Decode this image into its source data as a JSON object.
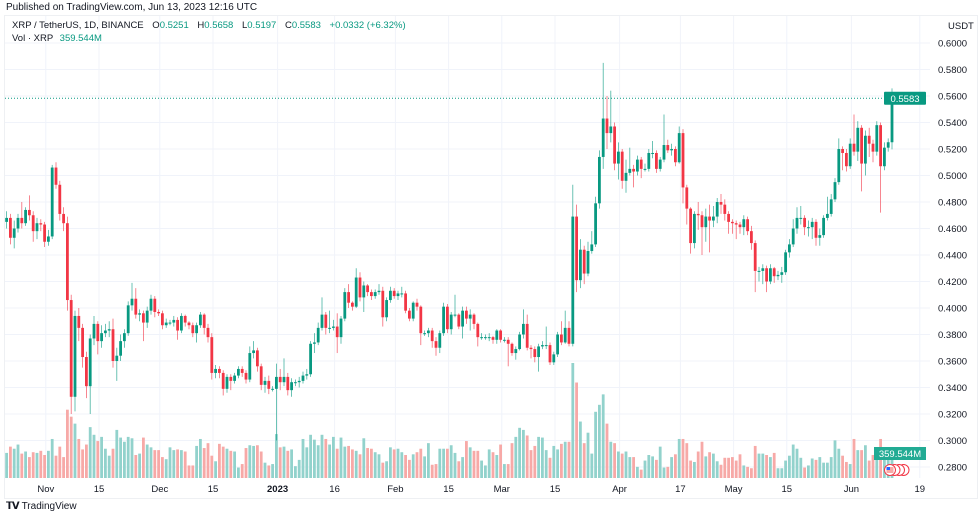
{
  "header": {
    "published": "Published on TradingView.com, Jun 13, 2023 12:16 UTC",
    "symbol": "XRP / TetherUS, 1D, BINANCE",
    "o_label": "O",
    "o": "0.5251",
    "h_label": "H",
    "h": "0.5658",
    "l_label": "L",
    "l": "0.5197",
    "c_label": "C",
    "c": "0.5583",
    "change": "+0.0332 (+6.32%)",
    "vol_label": "Vol · XRP",
    "vol": "359.544M"
  },
  "footer": {
    "brand": "TradingView",
    "logo_text": "TV"
  },
  "colors": {
    "up": "#089981",
    "down": "#f23645",
    "vol_up": "#92d2cc",
    "vol_down": "#f7a9a7",
    "grid": "#f0f3fa"
  },
  "event_icons": [
    "us-flag-icon",
    "event-icon",
    "event-icon",
    "event-icon"
  ],
  "chart_data": {
    "type": "candlestick",
    "title": "XRP / TetherUS, 1D, BINANCE",
    "ylabel": "USDT",
    "ylim": [
      0.27,
      0.61
    ],
    "yticks": [
      "0.6000",
      "0.5800",
      "0.5600",
      "0.5400",
      "0.5200",
      "0.5000",
      "0.4800",
      "0.4600",
      "0.4400",
      "0.4200",
      "0.4000",
      "0.3800",
      "0.3600",
      "0.3400",
      "0.3200",
      "0.3000",
      "0.2800"
    ],
    "last_bar_date": "2023-06-13",
    "last_price_label": "0.5583",
    "last_volume_label": "359.544M",
    "xticks": [
      {
        "label": "Nov",
        "date": "2022-11-01",
        "bold": false
      },
      {
        "label": "15",
        "date": "2022-11-15",
        "bold": false
      },
      {
        "label": "Dec",
        "date": "2022-12-01",
        "bold": false
      },
      {
        "label": "15",
        "date": "2022-12-15",
        "bold": false
      },
      {
        "label": "2023",
        "date": "2023-01-01",
        "bold": true
      },
      {
        "label": "16",
        "date": "2023-01-16",
        "bold": false
      },
      {
        "label": "Feb",
        "date": "2023-02-01",
        "bold": false
      },
      {
        "label": "15",
        "date": "2023-02-15",
        "bold": false
      },
      {
        "label": "Mar",
        "date": "2023-03-01",
        "bold": false
      },
      {
        "label": "15",
        "date": "2023-03-15",
        "bold": false
      },
      {
        "label": "Apr",
        "date": "2023-04-01",
        "bold": false
      },
      {
        "label": "17",
        "date": "2023-04-17",
        "bold": false
      },
      {
        "label": "May",
        "date": "2023-05-01",
        "bold": false
      },
      {
        "label": "15",
        "date": "2023-05-15",
        "bold": false
      },
      {
        "label": "Jun",
        "date": "2023-06-01",
        "bold": false
      },
      {
        "label": "19",
        "date": "2023-06-19",
        "bold": false
      }
    ],
    "first_open": 0.452,
    "close": [
      0.459,
      0.461,
      0.465,
      0.468,
      0.453,
      0.46,
      0.468,
      0.464,
      0.474,
      0.47,
      0.458,
      0.464,
      0.463,
      0.45,
      0.454,
      0.506,
      0.493,
      0.471,
      0.464,
      0.406,
      0.333,
      0.394,
      0.385,
      0.363,
      0.341,
      0.377,
      0.388,
      0.375,
      0.381,
      0.383,
      0.384,
      0.36,
      0.364,
      0.375,
      0.381,
      0.402,
      0.407,
      0.395,
      0.396,
      0.389,
      0.398,
      0.407,
      0.397,
      0.396,
      0.387,
      0.389,
      0.389,
      0.391,
      0.383,
      0.394,
      0.389,
      0.387,
      0.381,
      0.387,
      0.395,
      0.385,
      0.378,
      0.351,
      0.354,
      0.351,
      0.339,
      0.348,
      0.345,
      0.349,
      0.354,
      0.351,
      0.346,
      0.366,
      0.368,
      0.356,
      0.342,
      0.345,
      0.339,
      0.339,
      0.348,
      0.344,
      0.348,
      0.338,
      0.344,
      0.344,
      0.345,
      0.349,
      0.35,
      0.373,
      0.374,
      0.385,
      0.395,
      0.385,
      0.385,
      0.386,
      0.378,
      0.392,
      0.412,
      0.404,
      0.401,
      0.423,
      0.408,
      0.417,
      0.412,
      0.409,
      0.412,
      0.413,
      0.393,
      0.406,
      0.413,
      0.409,
      0.411,
      0.411,
      0.398,
      0.392,
      0.404,
      0.401,
      0.381,
      0.381,
      0.383,
      0.375,
      0.37,
      0.381,
      0.401,
      0.384,
      0.395,
      0.395,
      0.386,
      0.398,
      0.392,
      0.395,
      0.388,
      0.378,
      0.378,
      0.378,
      0.378,
      0.376,
      0.383,
      0.376,
      0.376,
      0.373,
      0.366,
      0.369,
      0.38,
      0.388,
      0.37,
      0.369,
      0.363,
      0.371,
      0.372,
      0.372,
      0.359,
      0.365,
      0.38,
      0.374,
      0.385,
      0.373,
      0.469,
      0.421,
      0.444,
      0.426,
      0.443,
      0.448,
      0.479,
      0.514,
      0.543,
      0.532,
      0.537,
      0.509,
      0.518,
      0.496,
      0.502,
      0.505,
      0.503,
      0.512,
      0.505,
      0.505,
      0.517,
      0.517,
      0.505,
      0.512,
      0.523,
      0.519,
      0.52,
      0.51,
      0.532,
      0.491,
      0.475,
      0.449,
      0.471,
      0.47,
      0.461,
      0.469,
      0.466,
      0.469,
      0.48,
      0.478,
      0.471,
      0.465,
      0.464,
      0.463,
      0.461,
      0.467,
      0.458,
      0.449,
      0.428,
      0.428,
      0.43,
      0.42,
      0.43,
      0.424,
      0.425,
      0.427,
      0.442,
      0.448,
      0.46,
      0.468,
      0.468,
      0.461,
      0.461,
      0.465,
      0.453,
      0.455,
      0.468,
      0.471,
      0.482,
      0.495,
      0.52,
      0.517,
      0.507,
      0.524,
      0.518,
      0.536,
      0.509,
      0.53,
      0.524,
      0.518,
      0.538,
      0.507,
      0.521,
      0.5251,
      0.5583
    ],
    "high": [
      0.466,
      0.468,
      0.47,
      0.473,
      0.471,
      0.466,
      0.471,
      0.48,
      0.476,
      0.485,
      0.473,
      0.468,
      0.467,
      0.465,
      0.459,
      0.508,
      0.51,
      0.496,
      0.476,
      0.469,
      0.41,
      0.398,
      0.4,
      0.388,
      0.367,
      0.38,
      0.394,
      0.39,
      0.387,
      0.388,
      0.39,
      0.392,
      0.37,
      0.38,
      0.384,
      0.405,
      0.419,
      0.415,
      0.399,
      0.398,
      0.401,
      0.41,
      0.409,
      0.399,
      0.398,
      0.392,
      0.391,
      0.394,
      0.393,
      0.396,
      0.395,
      0.39,
      0.389,
      0.389,
      0.397,
      0.396,
      0.388,
      0.381,
      0.357,
      0.356,
      0.353,
      0.35,
      0.35,
      0.351,
      0.356,
      0.356,
      0.353,
      0.371,
      0.375,
      0.37,
      0.358,
      0.348,
      0.349,
      0.341,
      0.358,
      0.354,
      0.362,
      0.351,
      0.347,
      0.346,
      0.348,
      0.352,
      0.354,
      0.375,
      0.381,
      0.389,
      0.408,
      0.397,
      0.398,
      0.391,
      0.396,
      0.394,
      0.415,
      0.418,
      0.405,
      0.43,
      0.427,
      0.42,
      0.418,
      0.414,
      0.414,
      0.418,
      0.416,
      0.408,
      0.416,
      0.415,
      0.413,
      0.416,
      0.413,
      0.4,
      0.405,
      0.407,
      0.402,
      0.383,
      0.385,
      0.385,
      0.378,
      0.383,
      0.404,
      0.403,
      0.397,
      0.41,
      0.396,
      0.401,
      0.401,
      0.399,
      0.396,
      0.389,
      0.381,
      0.38,
      0.381,
      0.379,
      0.384,
      0.384,
      0.378,
      0.378,
      0.374,
      0.371,
      0.382,
      0.399,
      0.395,
      0.372,
      0.371,
      0.373,
      0.375,
      0.386,
      0.374,
      0.367,
      0.382,
      0.39,
      0.398,
      0.39,
      0.493,
      0.478,
      0.452,
      0.447,
      0.45,
      0.458,
      0.484,
      0.519,
      0.585,
      0.56,
      0.564,
      0.54,
      0.525,
      0.52,
      0.512,
      0.521,
      0.508,
      0.515,
      0.514,
      0.509,
      0.52,
      0.526,
      0.519,
      0.514,
      0.546,
      0.527,
      0.524,
      0.522,
      0.537,
      0.535,
      0.493,
      0.476,
      0.473,
      0.48,
      0.473,
      0.475,
      0.478,
      0.477,
      0.483,
      0.486,
      0.482,
      0.473,
      0.467,
      0.466,
      0.465,
      0.47,
      0.469,
      0.462,
      0.451,
      0.431,
      0.433,
      0.432,
      0.433,
      0.431,
      0.428,
      0.431,
      0.444,
      0.452,
      0.467,
      0.476,
      0.477,
      0.47,
      0.466,
      0.468,
      0.467,
      0.46,
      0.47,
      0.484,
      0.486,
      0.498,
      0.528,
      0.522,
      0.52,
      0.528,
      0.546,
      0.541,
      0.538,
      0.534,
      0.536,
      0.527,
      0.541,
      0.54,
      0.525,
      0.528,
      0.5658
    ],
    "low": [
      0.445,
      0.452,
      0.455,
      0.46,
      0.448,
      0.445,
      0.457,
      0.46,
      0.462,
      0.466,
      0.45,
      0.452,
      0.458,
      0.446,
      0.447,
      0.452,
      0.49,
      0.466,
      0.458,
      0.398,
      0.32,
      0.322,
      0.375,
      0.355,
      0.332,
      0.32,
      0.372,
      0.365,
      0.37,
      0.378,
      0.378,
      0.355,
      0.345,
      0.36,
      0.37,
      0.379,
      0.398,
      0.392,
      0.39,
      0.375,
      0.385,
      0.395,
      0.393,
      0.394,
      0.384,
      0.385,
      0.387,
      0.386,
      0.376,
      0.381,
      0.386,
      0.384,
      0.378,
      0.374,
      0.385,
      0.38,
      0.374,
      0.346,
      0.347,
      0.347,
      0.334,
      0.336,
      0.338,
      0.343,
      0.347,
      0.348,
      0.343,
      0.344,
      0.362,
      0.352,
      0.338,
      0.336,
      0.335,
      0.337,
      0.3,
      0.338,
      0.341,
      0.334,
      0.333,
      0.341,
      0.34,
      0.343,
      0.346,
      0.348,
      0.366,
      0.372,
      0.383,
      0.38,
      0.381,
      0.383,
      0.366,
      0.373,
      0.39,
      0.4,
      0.398,
      0.4,
      0.405,
      0.397,
      0.409,
      0.406,
      0.407,
      0.41,
      0.386,
      0.39,
      0.404,
      0.407,
      0.406,
      0.408,
      0.396,
      0.39,
      0.39,
      0.398,
      0.372,
      0.379,
      0.378,
      0.37,
      0.364,
      0.366,
      0.379,
      0.381,
      0.38,
      0.393,
      0.384,
      0.377,
      0.388,
      0.383,
      0.384,
      0.371,
      0.376,
      0.376,
      0.375,
      0.373,
      0.373,
      0.374,
      0.374,
      0.356,
      0.364,
      0.361,
      0.368,
      0.377,
      0.368,
      0.362,
      0.359,
      0.352,
      0.369,
      0.369,
      0.357,
      0.357,
      0.363,
      0.372,
      0.373,
      0.371,
      0.371,
      0.412,
      0.415,
      0.418,
      0.424,
      0.441,
      0.446,
      0.475,
      0.505,
      0.52,
      0.525,
      0.504,
      0.497,
      0.49,
      0.487,
      0.5,
      0.491,
      0.5,
      0.498,
      0.503,
      0.503,
      0.513,
      0.502,
      0.503,
      0.51,
      0.517,
      0.515,
      0.507,
      0.509,
      0.479,
      0.463,
      0.441,
      0.445,
      0.459,
      0.44,
      0.45,
      0.442,
      0.461,
      0.464,
      0.471,
      0.466,
      0.456,
      0.456,
      0.452,
      0.456,
      0.455,
      0.455,
      0.444,
      0.412,
      0.42,
      0.418,
      0.412,
      0.418,
      0.419,
      0.421,
      0.419,
      0.425,
      0.438,
      0.446,
      0.456,
      0.463,
      0.455,
      0.454,
      0.452,
      0.447,
      0.447,
      0.453,
      0.466,
      0.469,
      0.48,
      0.493,
      0.504,
      0.503,
      0.505,
      0.515,
      0.511,
      0.488,
      0.5,
      0.514,
      0.51,
      0.515,
      0.472,
      0.504,
      0.518,
      0.5197
    ],
    "volume_m": [
      320,
      250,
      280,
      360,
      450,
      420,
      480,
      350,
      380,
      300,
      370,
      360,
      390,
      330,
      390,
      560,
      320,
      450,
      300,
      980,
      880,
      780,
      560,
      410,
      480,
      730,
      620,
      530,
      590,
      420,
      320,
      420,
      690,
      580,
      520,
      590,
      570,
      330,
      350,
      580,
      480,
      440,
      400,
      400,
      300,
      270,
      440,
      400,
      410,
      400,
      380,
      180,
      180,
      460,
      560,
      430,
      500,
      320,
      240,
      490,
      450,
      420,
      390,
      380,
      150,
      200,
      430,
      470,
      460,
      470,
      380,
      220,
      180,
      200,
      630,
      440,
      450,
      390,
      410,
      170,
      260,
      560,
      440,
      620,
      550,
      470,
      620,
      560,
      480,
      590,
      420,
      580,
      450,
      460,
      410,
      390,
      340,
      570,
      430,
      420,
      370,
      340,
      220,
      240,
      440,
      410,
      420,
      370,
      330,
      260,
      340,
      370,
      420,
      310,
      500,
      190,
      200,
      420,
      420,
      420,
      470,
      360,
      240,
      300,
      530,
      440,
      390,
      390,
      250,
      180,
      410,
      370,
      330,
      480,
      200,
      200,
      500,
      590,
      720,
      690,
      610,
      400,
      460,
      590,
      580,
      400,
      290,
      460,
      410,
      490,
      520,
      520,
      1650,
      1370,
      810,
      500,
      650,
      350,
      950,
      1050,
      1200,
      780,
      520,
      500,
      380,
      350,
      380,
      300,
      300,
      160,
      120,
      250,
      330,
      310,
      260,
      450,
      150,
      160,
      300,
      340,
      560,
      560,
      500,
      250,
      230,
      380,
      520,
      310,
      370,
      350,
      240,
      190,
      290,
      290,
      300,
      250,
      340,
      180,
      160,
      140,
      460,
      350,
      350,
      330,
      300,
      360,
      140,
      140,
      250,
      320,
      480,
      420,
      290,
      150,
      180,
      280,
      260,
      300,
      220,
      220,
      300,
      540,
      420,
      320,
      230,
      200,
      560,
      400,
      400,
      470,
      250,
      330,
      330,
      560,
      280,
      320,
      359.544
    ]
  }
}
